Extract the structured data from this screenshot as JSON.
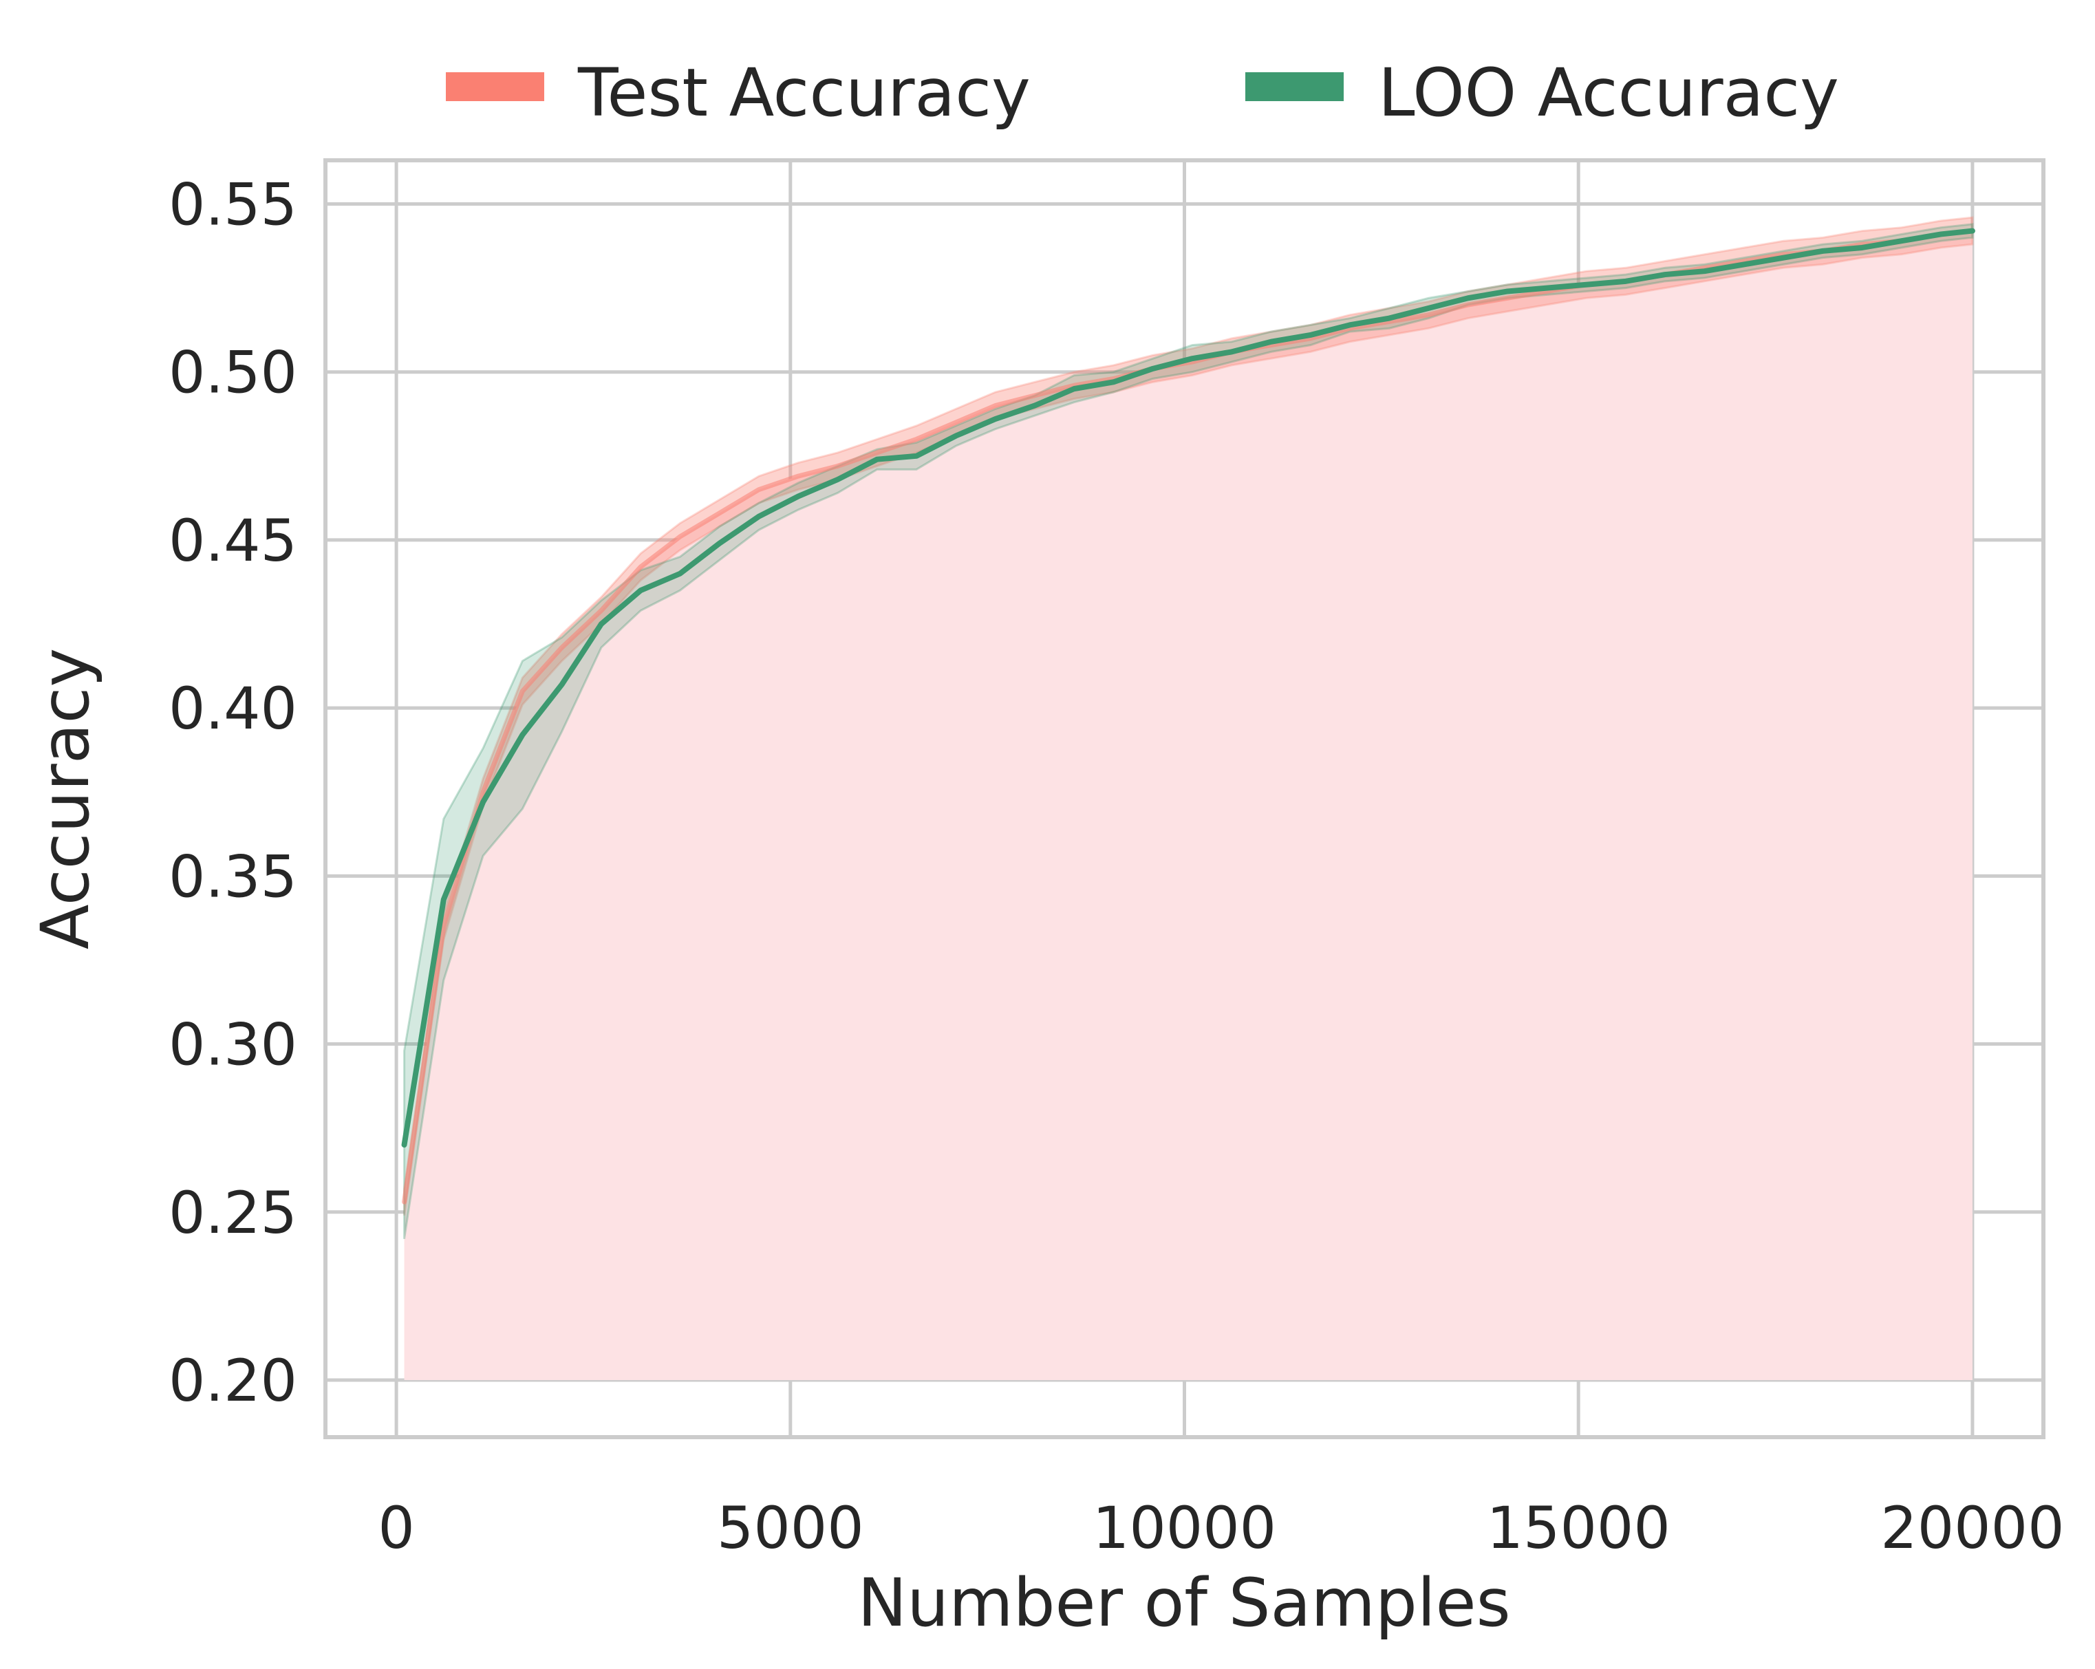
{
  "chart_data": {
    "type": "line",
    "title": "",
    "xlabel": "Number of Samples",
    "ylabel": "Accuracy",
    "xlim": [
      -900,
      20900
    ],
    "ylim": [
      0.183,
      0.563
    ],
    "xticks": [
      0,
      5000,
      10000,
      15000,
      20000
    ],
    "yticks": [
      0.2,
      0.25,
      0.3,
      0.35,
      0.4,
      0.45,
      0.5,
      0.55
    ],
    "grid": true,
    "legend": {
      "position": "top-center",
      "columns": 2
    },
    "area_fill": {
      "series": "Test Accuracy",
      "baseline": 0.2,
      "color": "#fde2e4"
    },
    "x": [
      100,
      600,
      1100,
      1600,
      2100,
      2600,
      3100,
      3600,
      4100,
      4600,
      5100,
      5600,
      6100,
      6600,
      7100,
      7600,
      8100,
      8600,
      9100,
      9600,
      10100,
      10600,
      11100,
      11600,
      12100,
      12600,
      13100,
      13600,
      14100,
      14600,
      15100,
      15600,
      16100,
      16600,
      17100,
      17600,
      18100,
      18600,
      19100,
      19600,
      20000
    ],
    "series": [
      {
        "name": "Test Accuracy",
        "color": "#fa8072",
        "values": [
          0.253,
          0.335,
          0.375,
          0.405,
          0.418,
          0.429,
          0.442,
          0.451,
          0.458,
          0.465,
          0.469,
          0.472,
          0.476,
          0.48,
          0.485,
          0.49,
          0.493,
          0.496,
          0.498,
          0.501,
          0.503,
          0.506,
          0.508,
          0.51,
          0.513,
          0.515,
          0.517,
          0.52,
          0.522,
          0.524,
          0.526,
          0.527,
          0.529,
          0.531,
          0.533,
          0.535,
          0.536,
          0.538,
          0.539,
          0.541,
          0.542
        ],
        "band_half_width": 0.004
      },
      {
        "name": "LOO Accuracy",
        "color": "#3d9970",
        "values": [
          0.27,
          0.343,
          0.372,
          0.392,
          0.407,
          0.425,
          0.435,
          0.44,
          0.449,
          0.457,
          0.463,
          0.468,
          0.474,
          0.475,
          0.481,
          0.486,
          0.49,
          0.495,
          0.497,
          0.501,
          0.504,
          0.506,
          0.509,
          0.511,
          0.514,
          0.516,
          0.519,
          0.522,
          0.524,
          0.525,
          0.526,
          0.527,
          0.529,
          0.53,
          0.532,
          0.534,
          0.536,
          0.537,
          0.539,
          0.541,
          0.542
        ],
        "band_half_width": [
          0.028,
          0.024,
          0.016,
          0.022,
          0.014,
          0.007,
          0.006,
          0.005,
          0.005,
          0.004,
          0.004,
          0.004,
          0.003,
          0.004,
          0.003,
          0.003,
          0.003,
          0.004,
          0.003,
          0.003,
          0.004,
          0.003,
          0.003,
          0.003,
          0.002,
          0.003,
          0.003,
          0.002,
          0.002,
          0.002,
          0.002,
          0.002,
          0.002,
          0.002,
          0.002,
          0.002,
          0.002,
          0.002,
          0.002,
          0.002,
          0.002
        ]
      }
    ]
  }
}
